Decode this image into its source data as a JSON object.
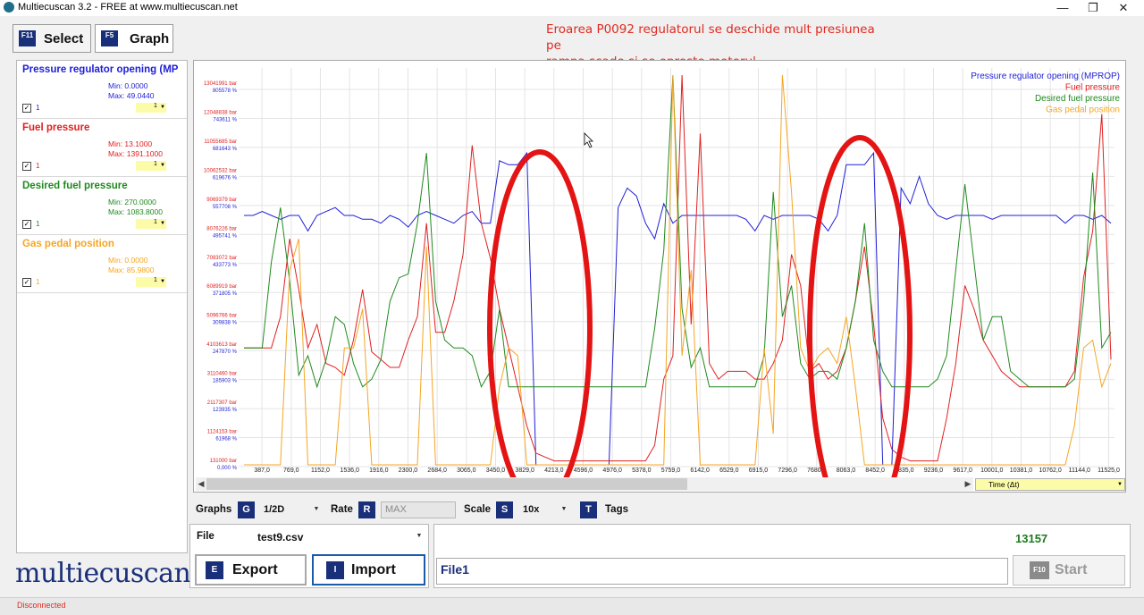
{
  "window": {
    "title": "Multiecuscan 3.2 - FREE at www.multiecuscan.net",
    "minimize": "—",
    "maximize": "❐",
    "close": "✕"
  },
  "annotation": {
    "line1": "Eroarea P0092 regulatorul se deschide mult presiunea pe",
    "line2": "rampa scade si se opreste motorul."
  },
  "tabs": [
    {
      "key": "F11",
      "label": "Select"
    },
    {
      "key": "F5",
      "label": "Graph"
    }
  ],
  "signals": [
    {
      "name": "Pressure regulator opening (MP",
      "min": "Min: 0.0000",
      "max": "Max: 49.0440",
      "scale": "1",
      "combo": "1",
      "color": "#1f1fd6"
    },
    {
      "name": "Fuel pressure",
      "min": "Min: 13.1000",
      "max": "Max: 1391.1000",
      "scale": "1",
      "combo": "1",
      "color": "#e02020"
    },
    {
      "name": "Desired fuel pressure",
      "min": "Min: 270.0000",
      "max": "Max: 1083.8000",
      "scale": "1",
      "combo": "1",
      "color": "#1f8a1f"
    },
    {
      "name": "Gas pedal position",
      "min": "Min: 0.0000",
      "max": "Max: 85.9800",
      "scale": "1",
      "combo": "1",
      "color": "#f5a623"
    }
  ],
  "brand": "multiecuscan",
  "axis_select": "Time (Δt)",
  "controls": {
    "graphs_label": "Graphs",
    "graphs_key": "G",
    "graphs_value": "1/2D",
    "rate_label": "Rate",
    "rate_key": "R",
    "rate_value": "MAX",
    "scale_label": "Scale",
    "scale_key": "S",
    "scale_value": "10x",
    "tags_key": "T",
    "tags_label": "Tags"
  },
  "file": {
    "label": "File",
    "name": "test9.csv",
    "export_key": "E",
    "export_label": "Export",
    "import_key": "I",
    "import_label": "Import"
  },
  "session": {
    "name": "File1",
    "counter": "13157",
    "start_key": "F10",
    "start_label": "Start"
  },
  "status": "Disconnected",
  "chart_data": {
    "type": "line",
    "xlabel": "Time (Δt)",
    "x_ticks": [
      "387,0",
      "769,0",
      "1152,0",
      "1536,0",
      "1916,0",
      "2300,0",
      "2684,0",
      "3065,0",
      "3450,0",
      "3829,0",
      "4213,0",
      "4596,0",
      "4976,0",
      "5378,0",
      "5759,0",
      "6142,0",
      "6529,0",
      "6915,0",
      "7296,0",
      "7680,0",
      "8063,0",
      "8452,0",
      "8835,0",
      "9236,0",
      "9617,0",
      "10001,0",
      "10381,0",
      "10762,0",
      "11144,0",
      "11525,0"
    ],
    "y_ticks_bar": [
      "13041991 bar",
      "12048838 bar",
      "11055685 bar",
      "10062532 bar",
      "9069379 bar",
      "8076226 bar",
      "7083072 bar",
      "6089919 bar",
      "5096766 bar",
      "4103613 bar",
      "3110460 bar",
      "2117307 bar",
      "1124153 bar",
      "131000 bar"
    ],
    "y_ticks_pct": [
      "805578 %",
      "743611 %",
      "681643 %",
      "619676 %",
      "557708 %",
      "495741 %",
      "433773 %",
      "371805 %",
      "309838 %",
      "247870 %",
      "185903 %",
      "123935 %",
      "61968 %",
      "0,000 %"
    ],
    "series": [
      {
        "name": "Pressure regulator opening (MPROP)",
        "color": "#1f1fd6",
        "values": [
          64,
          64,
          65,
          64,
          63,
          64,
          64,
          60,
          64,
          65,
          66,
          64,
          64,
          63,
          63,
          62,
          64,
          63,
          61,
          64,
          65,
          64,
          63,
          62,
          64,
          65,
          62,
          62,
          78,
          77,
          77,
          80,
          0,
          0,
          0,
          0,
          0,
          0,
          0,
          0,
          0,
          66,
          71,
          69,
          62,
          58,
          67,
          62,
          64,
          64,
          64,
          64,
          64,
          64,
          64,
          63,
          60,
          64,
          63,
          64,
          64,
          64,
          64,
          63,
          60,
          64,
          77,
          77,
          77,
          80,
          0,
          0,
          71,
          67,
          74,
          67,
          64,
          63,
          64,
          64,
          64,
          64,
          63,
          64,
          64,
          64,
          64,
          64,
          64,
          64,
          62,
          64,
          64,
          63,
          64,
          62
        ]
      },
      {
        "name": "Fuel pressure",
        "color": "#e02020",
        "values": [
          30,
          30,
          30,
          30,
          38,
          58,
          45,
          30,
          36,
          26,
          25,
          23,
          32,
          45,
          29,
          27,
          25,
          25,
          32,
          38,
          62,
          34,
          34,
          42,
          54,
          82,
          62,
          53,
          40,
          30,
          20,
          10,
          3,
          2,
          1,
          1,
          1,
          1,
          1,
          1,
          1,
          1,
          1,
          1,
          1,
          5,
          22,
          28,
          100,
          36,
          85,
          26,
          22,
          24,
          24,
          24,
          22,
          22,
          26,
          32,
          54,
          46,
          24,
          26,
          22,
          24,
          30,
          42,
          56,
          36,
          12,
          4,
          2,
          1,
          1,
          1,
          1,
          12,
          26,
          46,
          40,
          32,
          28,
          24,
          22,
          20,
          20,
          20,
          20,
          20,
          20,
          24,
          48,
          60,
          90,
          27
        ]
      },
      {
        "name": "Desired fuel pressure",
        "color": "#1f8a1f",
        "values": [
          30,
          30,
          30,
          52,
          66,
          47,
          23,
          28,
          20,
          27,
          38,
          36,
          26,
          20,
          22,
          27,
          42,
          48,
          49,
          62,
          80,
          42,
          32,
          30,
          30,
          28,
          20,
          24,
          40,
          20,
          20,
          20,
          20,
          20,
          20,
          20,
          20,
          20,
          20,
          20,
          20,
          20,
          20,
          20,
          20,
          35,
          55,
          100,
          40,
          25,
          30,
          20,
          20,
          20,
          20,
          20,
          20,
          28,
          70,
          38,
          46,
          26,
          22,
          24,
          24,
          22,
          30,
          42,
          62,
          32,
          24,
          20,
          20,
          20,
          20,
          20,
          22,
          28,
          50,
          72,
          52,
          32,
          38,
          38,
          24,
          22,
          20,
          20,
          20,
          20,
          20,
          22,
          42,
          75,
          30,
          34
        ]
      },
      {
        "name": "Gas pedal position",
        "color": "#f5a623",
        "values": [
          0,
          0,
          0,
          0,
          0,
          50,
          58,
          0,
          0,
          0,
          0,
          30,
          30,
          40,
          0,
          0,
          0,
          0,
          0,
          0,
          56,
          0,
          0,
          0,
          0,
          0,
          0,
          0,
          20,
          30,
          28,
          0,
          0,
          0,
          0,
          0,
          0,
          0,
          0,
          0,
          0,
          0,
          0,
          0,
          0,
          0,
          0,
          100,
          28,
          50,
          0,
          0,
          0,
          0,
          0,
          0,
          0,
          30,
          8,
          100,
          70,
          30,
          24,
          28,
          30,
          26,
          38,
          20,
          0,
          0,
          0,
          0,
          0,
          0,
          0,
          0,
          0,
          0,
          0,
          0,
          0,
          0,
          0,
          0,
          0,
          0,
          0,
          0,
          0,
          0,
          0,
          10,
          30,
          32,
          20,
          26
        ]
      }
    ]
  }
}
